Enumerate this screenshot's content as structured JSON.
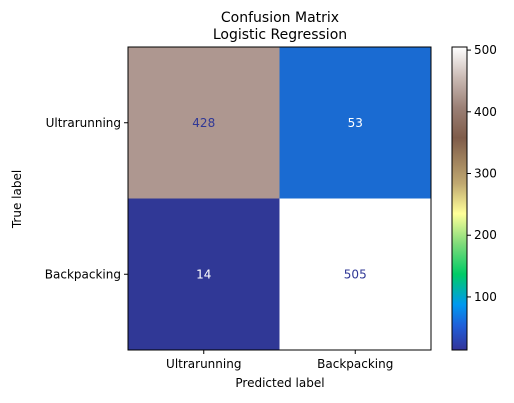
{
  "chart_data": {
    "type": "heatmap",
    "title": [
      "Confusion Matrix",
      "Logistic Regression"
    ],
    "xlabel": "Predicted label",
    "ylabel": "True label",
    "x_categories": [
      "Ultrarunning",
      "Backpacking"
    ],
    "y_categories": [
      "Ultrarunning",
      "Backpacking"
    ],
    "values": [
      [
        428,
        53
      ],
      [
        14,
        505
      ]
    ],
    "cell_colors": [
      [
        "#ae9790",
        "#1a6bd2"
      ],
      [
        "#303896",
        "#ffffff"
      ]
    ],
    "cell_text_colors": [
      [
        "#303896",
        "#ffffff"
      ],
      [
        "#ffffff",
        "#303896"
      ]
    ],
    "colormap": "terrain",
    "colorbar": {
      "range": [
        14,
        505
      ],
      "ticks": [
        100,
        200,
        300,
        400,
        500
      ],
      "tick_labels": [
        "100",
        "200",
        "300",
        "400",
        "500"
      ]
    },
    "grid": false
  }
}
